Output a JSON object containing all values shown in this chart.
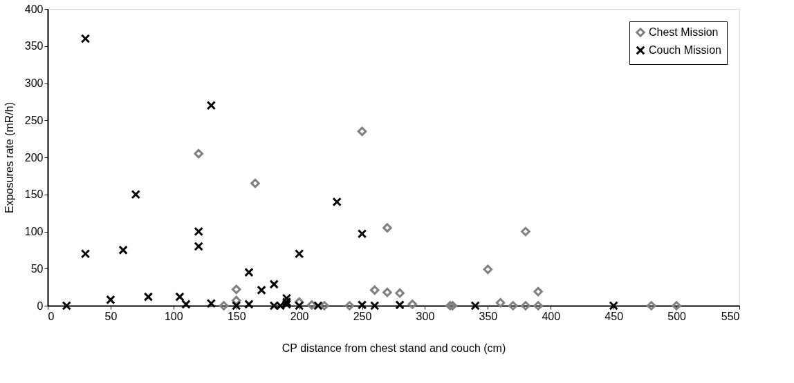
{
  "chart_data": {
    "type": "scatter",
    "xlabel": "CP distance from chest stand and couch (cm)",
    "ylabel": "Exposures rate (mR/h)",
    "xlim": [
      0,
      550
    ],
    "xticks": [
      0,
      50,
      100,
      150,
      200,
      250,
      300,
      350,
      400,
      450,
      500,
      550
    ],
    "ylim": [
      0,
      400
    ],
    "yticks": [
      0,
      50,
      100,
      150,
      200,
      250,
      300,
      350,
      400
    ],
    "grid": false,
    "legend": "top right",
    "series": [
      {
        "name": "Chest Mission",
        "color": "#808080",
        "marker": "diamond",
        "x": [
          140,
          150,
          150,
          120,
          165,
          200,
          210,
          220,
          240,
          250,
          260,
          270,
          270,
          280,
          290,
          320,
          322,
          350,
          360,
          370,
          380,
          380,
          390,
          390,
          480,
          500
        ],
        "values": [
          0,
          22,
          7,
          205,
          165,
          5,
          1,
          0,
          0,
          235,
          21,
          18,
          105,
          17,
          2,
          0,
          0,
          49,
          4,
          0,
          0,
          100,
          0,
          19,
          0,
          0
        ]
      },
      {
        "name": "Couch Mission",
        "color": "#000000",
        "marker": "cross",
        "x": [
          15,
          30,
          30,
          50,
          60,
          70,
          80,
          105,
          110,
          120,
          120,
          130,
          130,
          150,
          160,
          160,
          170,
          180,
          180,
          185,
          190,
          190,
          190,
          200,
          200,
          215,
          230,
          250,
          250,
          260,
          280,
          340,
          450
        ],
        "values": [
          0,
          360,
          70,
          8,
          75,
          150,
          12,
          12,
          2,
          100,
          80,
          270,
          3,
          0,
          45,
          2,
          21,
          29,
          0,
          0,
          10,
          5,
          2,
          70,
          0,
          0,
          140,
          97,
          1,
          0,
          1,
          0,
          0
        ]
      }
    ]
  }
}
